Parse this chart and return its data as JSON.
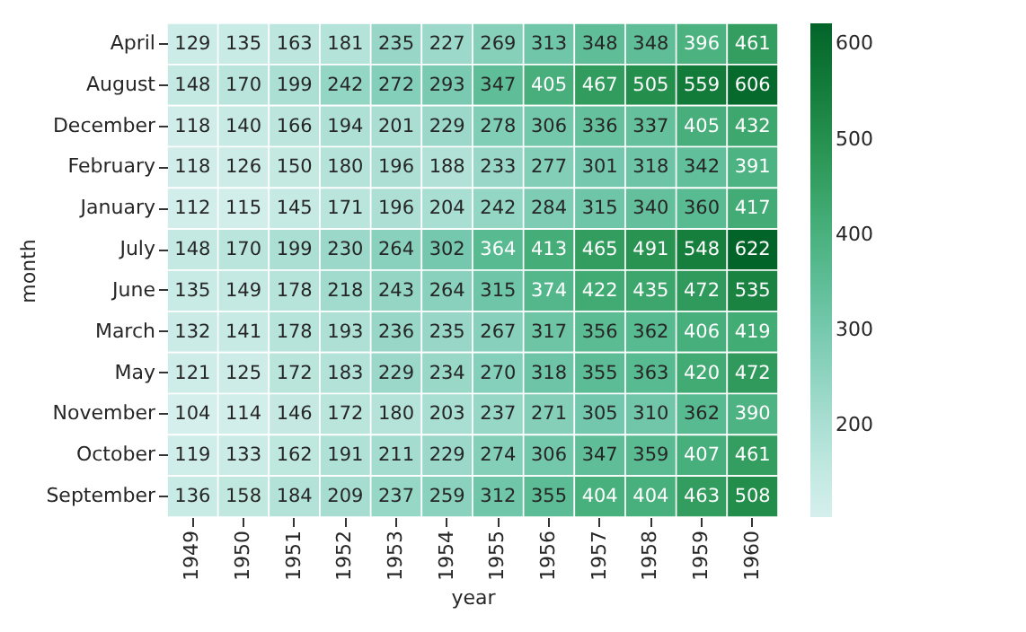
{
  "chart_data": {
    "type": "heatmap",
    "xlabel": "year",
    "ylabel": "month",
    "categories": [
      "1949",
      "1950",
      "1951",
      "1952",
      "1953",
      "1954",
      "1955",
      "1956",
      "1957",
      "1958",
      "1959",
      "1960"
    ],
    "y_categories": [
      "April",
      "August",
      "December",
      "February",
      "January",
      "July",
      "June",
      "March",
      "May",
      "November",
      "October",
      "September"
    ],
    "cells": [
      [
        129,
        135,
        163,
        181,
        235,
        227,
        269,
        313,
        348,
        348,
        396,
        461
      ],
      [
        148,
        170,
        199,
        242,
        272,
        293,
        347,
        405,
        467,
        505,
        559,
        606
      ],
      [
        118,
        140,
        166,
        194,
        201,
        229,
        278,
        306,
        336,
        337,
        405,
        432
      ],
      [
        118,
        126,
        150,
        180,
        196,
        188,
        233,
        277,
        301,
        318,
        342,
        391
      ],
      [
        112,
        115,
        145,
        171,
        196,
        204,
        242,
        284,
        315,
        340,
        360,
        417
      ],
      [
        148,
        170,
        199,
        230,
        264,
        302,
        364,
        413,
        465,
        491,
        548,
        622
      ],
      [
        135,
        149,
        178,
        218,
        243,
        264,
        315,
        374,
        422,
        435,
        472,
        535
      ],
      [
        132,
        141,
        178,
        193,
        236,
        235,
        267,
        317,
        356,
        362,
        406,
        419
      ],
      [
        121,
        125,
        172,
        183,
        229,
        234,
        270,
        318,
        355,
        363,
        420,
        472
      ],
      [
        104,
        114,
        146,
        172,
        180,
        203,
        237,
        271,
        305,
        310,
        362,
        390
      ],
      [
        119,
        133,
        162,
        191,
        211,
        229,
        274,
        306,
        347,
        359,
        407,
        461
      ],
      [
        136,
        158,
        184,
        209,
        237,
        259,
        312,
        355,
        404,
        404,
        463,
        508
      ]
    ],
    "data_labels": true,
    "clim": [
      104,
      622
    ],
    "cticks": [
      200,
      300,
      400,
      500,
      600
    ]
  }
}
